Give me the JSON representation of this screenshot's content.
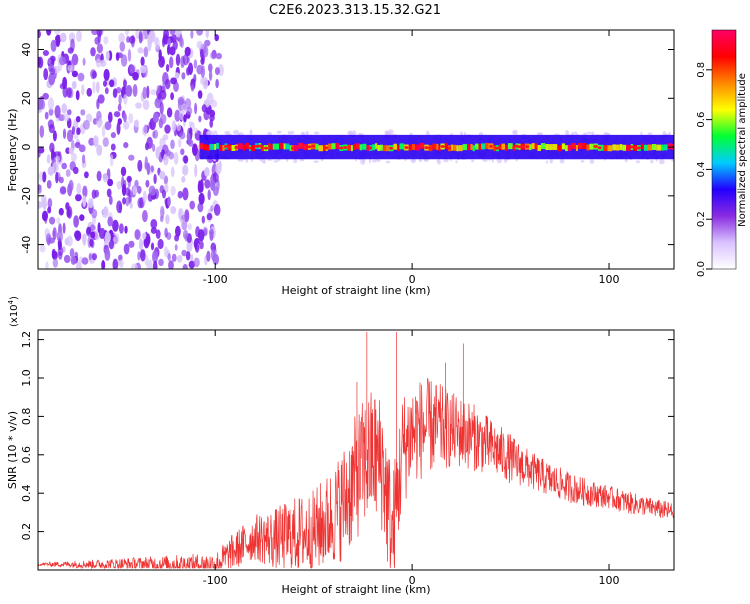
{
  "figure": {
    "title": "C2E6.2023.313.15.32.G21"
  },
  "colorbar": {
    "label": "Normalized spectral amplitude",
    "ticks": [
      "0.0",
      "0.2",
      "0.4",
      "0.6",
      "0.8"
    ],
    "range": [
      0,
      0.96
    ],
    "colors": [
      "#ffffff",
      "#d9c2ff",
      "#8a2be2",
      "#2200ff",
      "#00ccff",
      "#00ff33",
      "#ffff00",
      "#ff8800",
      "#ff0000",
      "#ff0066"
    ]
  },
  "chart_data": [
    {
      "type": "heatmap",
      "title": "",
      "xlabel": "Height of straight line (km)",
      "ylabel": "Frequency (Hz)",
      "xlim": [
        -190,
        133
      ],
      "ylim": [
        -50,
        48
      ],
      "xticks": [
        "-100",
        "0",
        "100"
      ],
      "yticks": [
        "-40",
        "-20",
        "0",
        "20",
        "40"
      ],
      "noise_region_x": [
        -190,
        -97
      ],
      "signal_band": {
        "x_start": -108,
        "x_end": 133,
        "center_freq": 0,
        "half_width": 3
      }
    },
    {
      "type": "line",
      "title": "",
      "xlabel": "Height of straight line (km)",
      "ylabel": "SNR (10 * v/v)",
      "y_multiplier": "(x10",
      "y_multiplier_exp": "4",
      "y_multiplier_close": ")",
      "xlim": [
        -190,
        133
      ],
      "ylim": [
        0,
        1.25
      ],
      "xticks": [
        "-100",
        "0",
        "100"
      ],
      "yticks": [
        "0.2",
        "0.4",
        "0.6",
        "0.8",
        "1.0",
        "1.2"
      ],
      "color": "#ee3333",
      "envelope": {
        "x": [
          -190,
          -100,
          -95,
          -90,
          -80,
          -70,
          -60,
          -50,
          -40,
          -35,
          -30,
          -25,
          -20,
          -15,
          -10,
          -5,
          0,
          10,
          20,
          30,
          40,
          50,
          60,
          70,
          80,
          90,
          100,
          110,
          120,
          133
        ],
        "y": [
          0.03,
          0.03,
          0.06,
          0.1,
          0.17,
          0.16,
          0.18,
          0.2,
          0.28,
          0.35,
          0.45,
          0.55,
          0.6,
          0.55,
          0.15,
          0.62,
          0.72,
          0.75,
          0.73,
          0.7,
          0.64,
          0.58,
          0.52,
          0.47,
          0.43,
          0.4,
          0.38,
          0.35,
          0.33,
          0.3
        ]
      },
      "noise": [
        0.008,
        0.06,
        0.09,
        0.1,
        0.12,
        0.16,
        0.2,
        0.22,
        0.26,
        0.3,
        0.33,
        0.34,
        0.36,
        0.36,
        0.35,
        0.3,
        0.28,
        0.25,
        0.2,
        0.18,
        0.15,
        0.13,
        0.1,
        0.09,
        0.08,
        0.07,
        0.06,
        0.06,
        0.05,
        0.05
      ],
      "spikes": [
        {
          "x": -23,
          "y": 1.24
        },
        {
          "x": -8,
          "y": 1.24
        },
        {
          "x": 26,
          "y": 1.18
        },
        {
          "x": 17,
          "y": 1.08
        },
        {
          "x": -28,
          "y": 0.98
        }
      ]
    }
  ]
}
